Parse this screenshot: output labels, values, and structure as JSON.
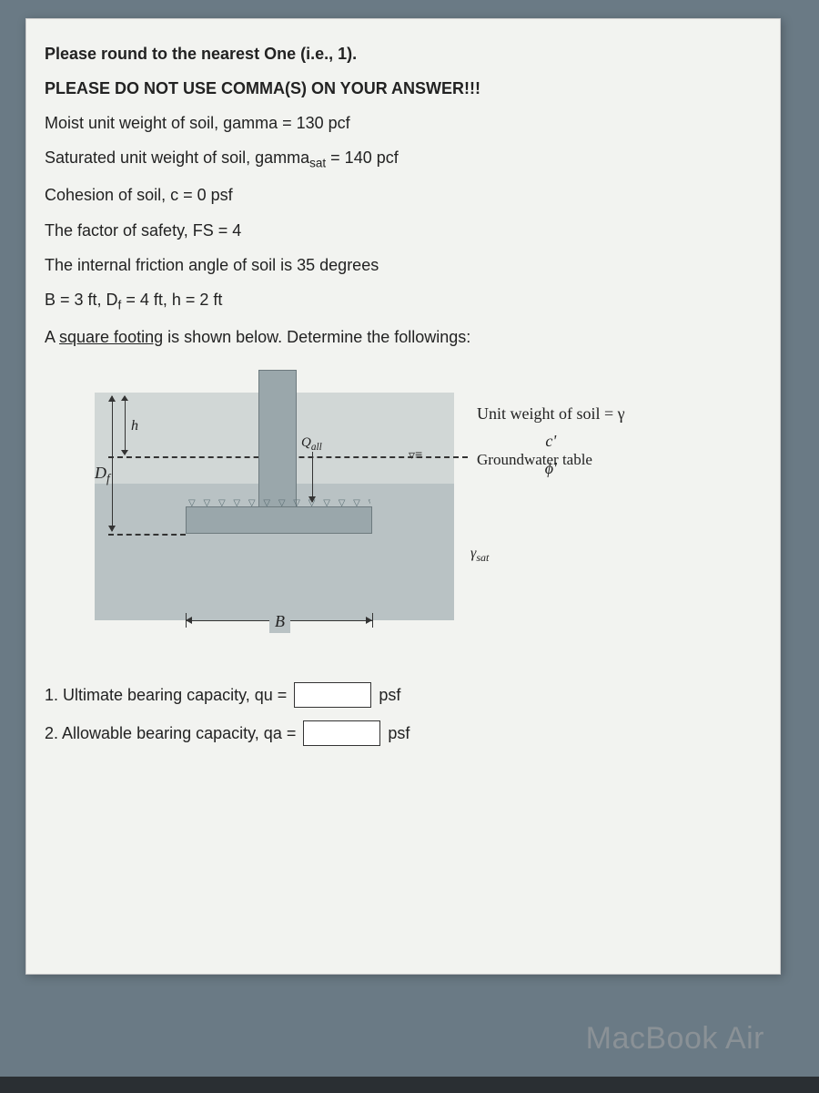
{
  "instructions": {
    "round": "Please round to the nearest One (i.e., 1).",
    "no_comma": "PLEASE DO NOT USE COMMA(S) ON YOUR ANSWER!!!"
  },
  "given": {
    "gamma": "Moist unit weight of soil, gamma = 130 pcf",
    "gamma_sat_pre": "Saturated unit weight of soil, gamma",
    "gamma_sat_sub": "sat",
    "gamma_sat_post": " = 140 pcf",
    "cohesion": "Cohesion of soil, c = 0 psf",
    "fs": "The factor of safety, FS = 4",
    "phi": "The internal friction angle of soil is 35 degrees",
    "dims_pre": "B = 3 ft, D",
    "dims_sub": "f",
    "dims_post": " = 4 ft, h = 2 ft",
    "footing_pre": "A ",
    "footing_u": "square footing",
    "footing_post": "  is shown below. Determine the followings:"
  },
  "diagram": {
    "Df": "D",
    "Df_sub": "f",
    "h": "h",
    "qall": "Q",
    "qall_sub": "all",
    "B": "B",
    "unit_weight": "Unit weight of soil = γ",
    "c_prime": "c'",
    "phi_prime": "ϕ'",
    "groundwater": "Groundwater table",
    "ysat": "γ",
    "ysat_sub": "sat",
    "gw_symbol": "▿≡"
  },
  "questions": {
    "q1": "1. Ultimate bearing capacity, qu =",
    "q1_unit": "psf",
    "q2": "2. Allowable bearing capacity, qa =",
    "q2_unit": "psf"
  },
  "device": "MacBook Air",
  "colors": {
    "page_bg": "#6a7a85",
    "sheet_bg": "#f2f3f0",
    "soil_lower": "#b9c2c4",
    "soil_upper": "#d1d7d6",
    "footing": "#9aa7ab"
  }
}
